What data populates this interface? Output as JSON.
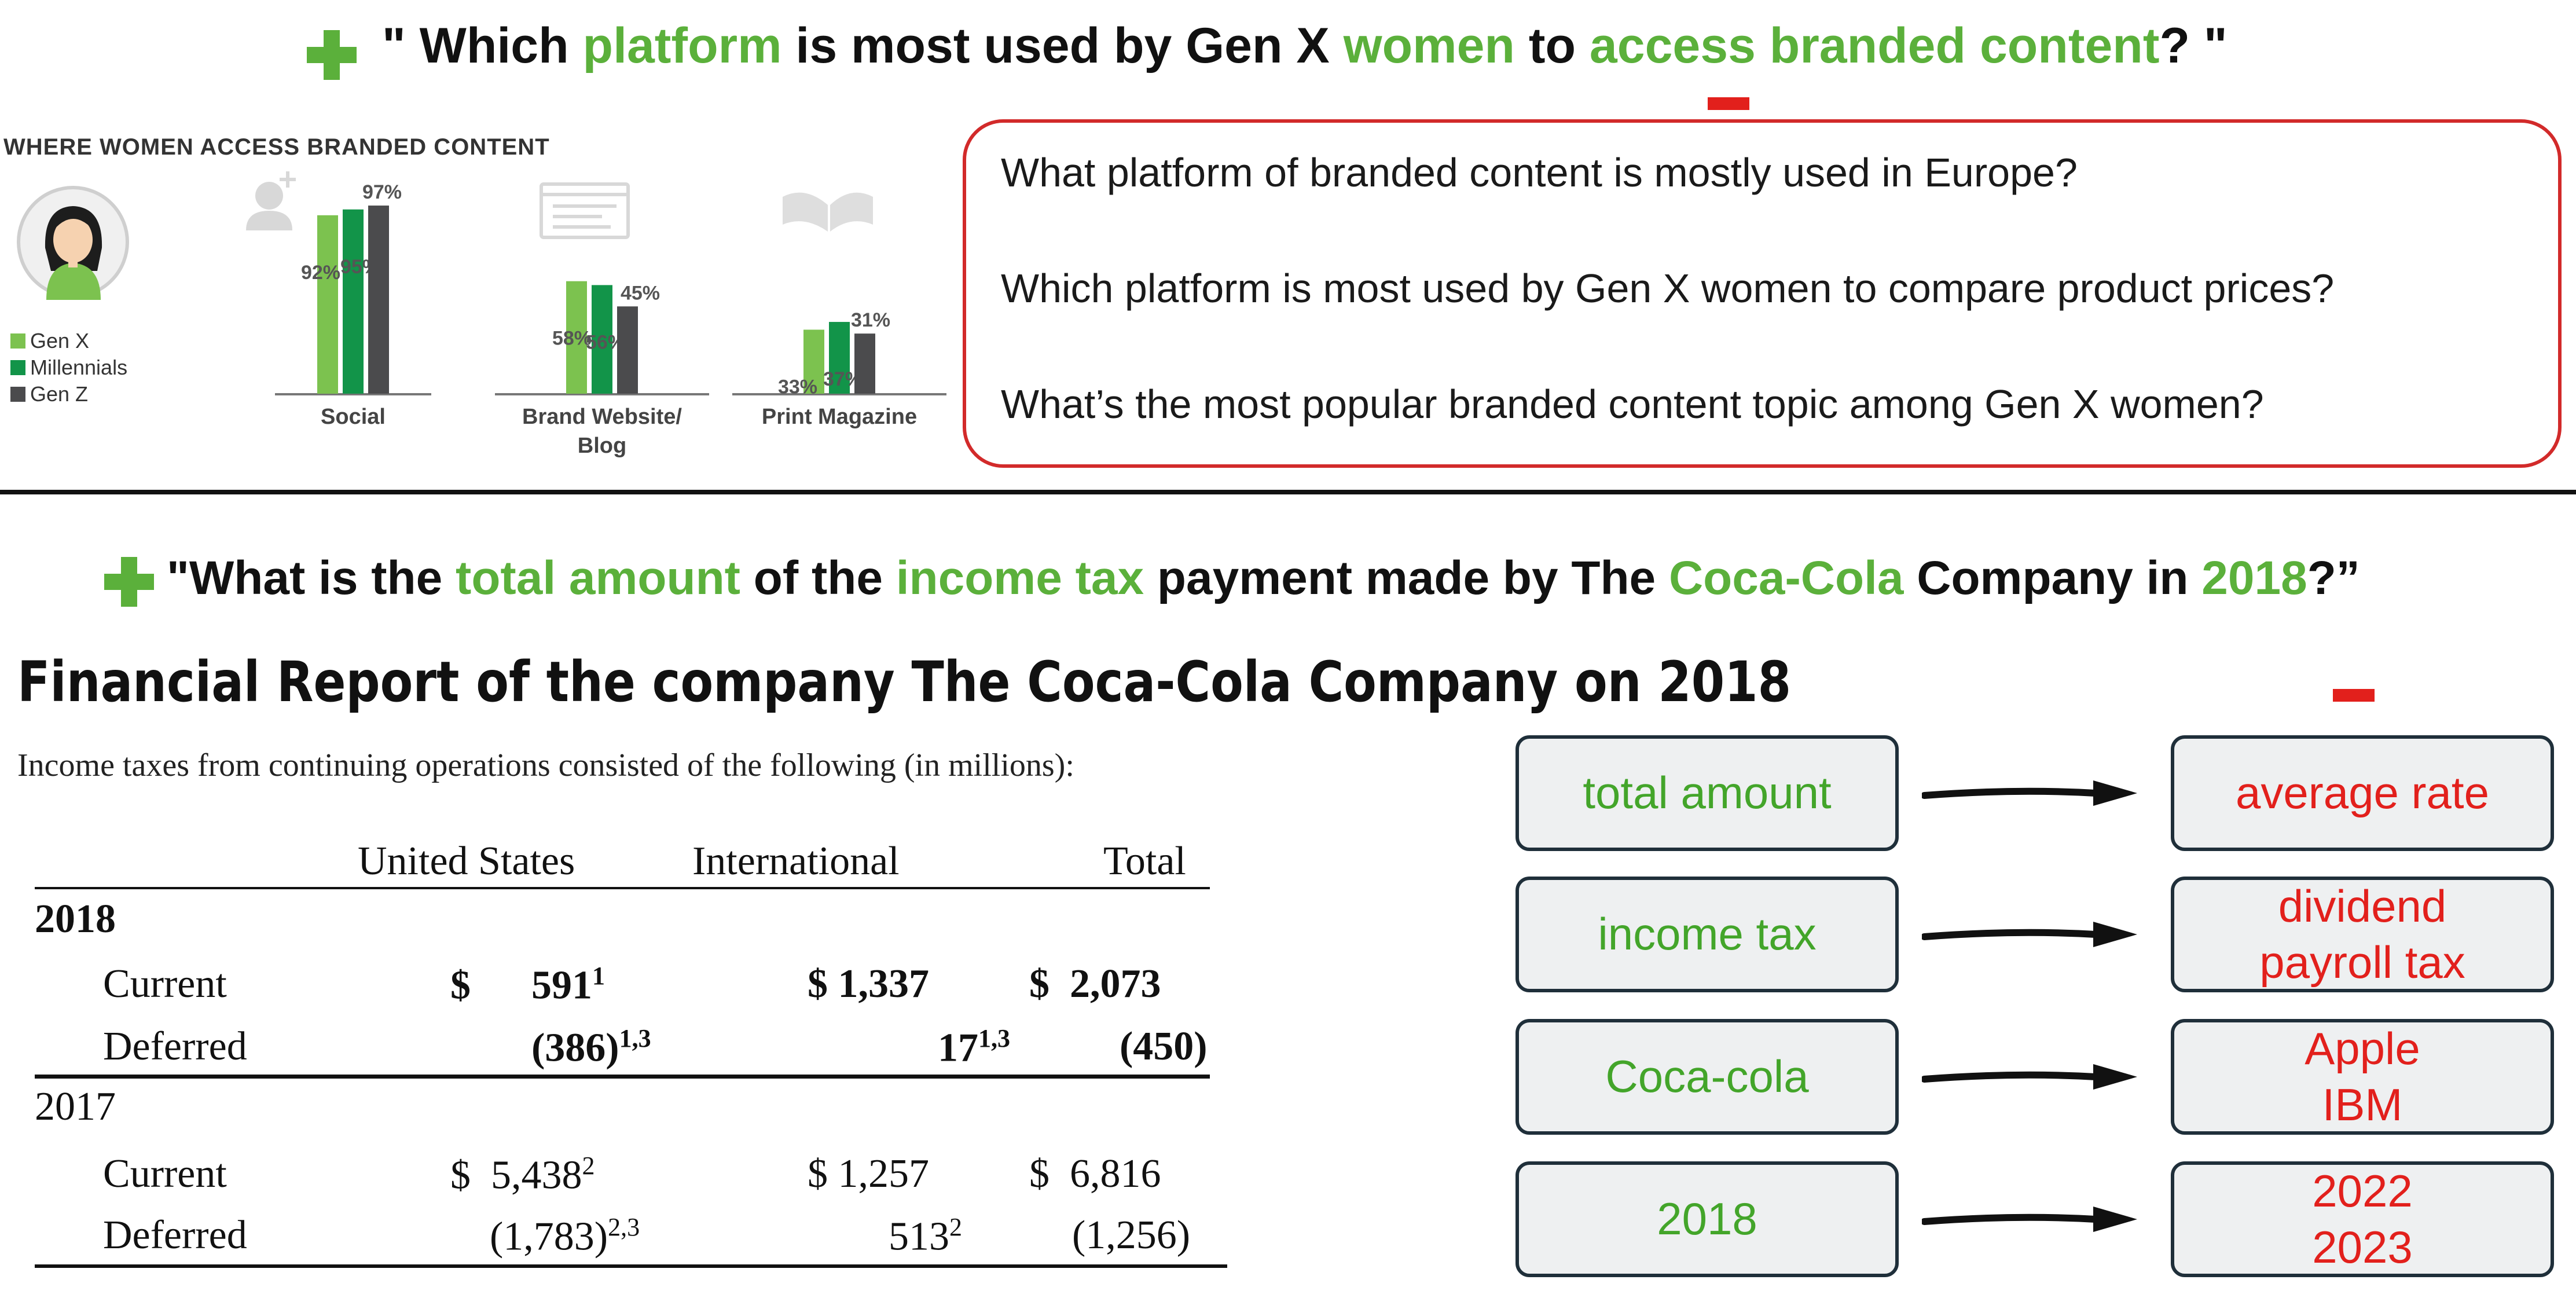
{
  "top_question": {
    "open": "\" Which ",
    "k1": "platform",
    "t2": " is most used by Gen X ",
    "k2": "women",
    "t3": " to ",
    "k3": "access branded content",
    "close": "? \""
  },
  "infographic": {
    "title": "WHERE WOMEN ACCESS BRANDED CONTENT",
    "legend": [
      "Gen X",
      "Millennials",
      "Gen Z"
    ],
    "colors": {
      "genx": "#7cc24f",
      "millennials": "#129449",
      "genz": "#4b4b4d"
    }
  },
  "chart_data": {
    "type": "bar",
    "title": "WHERE WOMEN ACCESS BRANDED CONTENT",
    "categories": [
      "Social",
      "Brand Website/\nBlog",
      "Print Magazine"
    ],
    "series": [
      {
        "name": "Gen X",
        "values": [
          92,
          58,
          33
        ]
      },
      {
        "name": "Millennials",
        "values": [
          95,
          56,
          37
        ]
      },
      {
        "name": "Gen Z",
        "values": [
          97,
          45,
          31
        ]
      }
    ],
    "value_labels": [
      [
        "92%",
        "95%",
        "97%"
      ],
      [
        "58%",
        "56%",
        "45%"
      ],
      [
        "33%",
        "37%",
        "31%"
      ]
    ],
    "ylim": [
      0,
      100
    ],
    "legend_position": "left"
  },
  "alternative_questions": [
    "What platform of branded content is mostly used in Europe?",
    "Which platform is most used by Gen X women to compare product prices?",
    "What’s the most popular branded content topic among Gen X women?"
  ],
  "bottom_question": {
    "open": "\"What is the ",
    "k1": "total amount",
    "t2": " of the ",
    "k2": "income tax",
    "t3": " payment made by The ",
    "k3": "Coca-Cola",
    "t4": " Company in ",
    "k4": "2018",
    "close": "?”"
  },
  "report": {
    "title": "Financial Report of the company The Coca-Cola Company on 2018",
    "subtitle": "Income taxes from continuing operations consisted of the following (in millions):",
    "headers": [
      "United States",
      "International",
      "Total"
    ],
    "year1": "2018",
    "year2": "2017",
    "current": "Current",
    "deferred": "Deferred",
    "r2018_current": {
      "us": "$      591",
      "us_sup": "1",
      "intl": "$ 1,337",
      "total": "$  2,073"
    },
    "r2018_deferred": {
      "us": "(386)",
      "us_sup": "1,3",
      "intl": "17",
      "intl_sup": "1,3",
      "total": "(450)"
    },
    "r2017_current": {
      "us": "$  5,438",
      "us_sup": "2",
      "intl": "$ 1,257",
      "total": "$  6,816"
    },
    "r2017_deferred": {
      "us": "(1,783)",
      "us_sup": "2,3",
      "intl": "513",
      "intl_sup": "2",
      "total": "(1,256)"
    }
  },
  "substitutions": [
    {
      "from": "total amount",
      "to": "average rate"
    },
    {
      "from": "income tax",
      "to": "dividend\npayroll tax"
    },
    {
      "from": "Coca-cola",
      "to": "Apple\nIBM"
    },
    {
      "from": "2018",
      "to": "2022\n2023"
    }
  ]
}
